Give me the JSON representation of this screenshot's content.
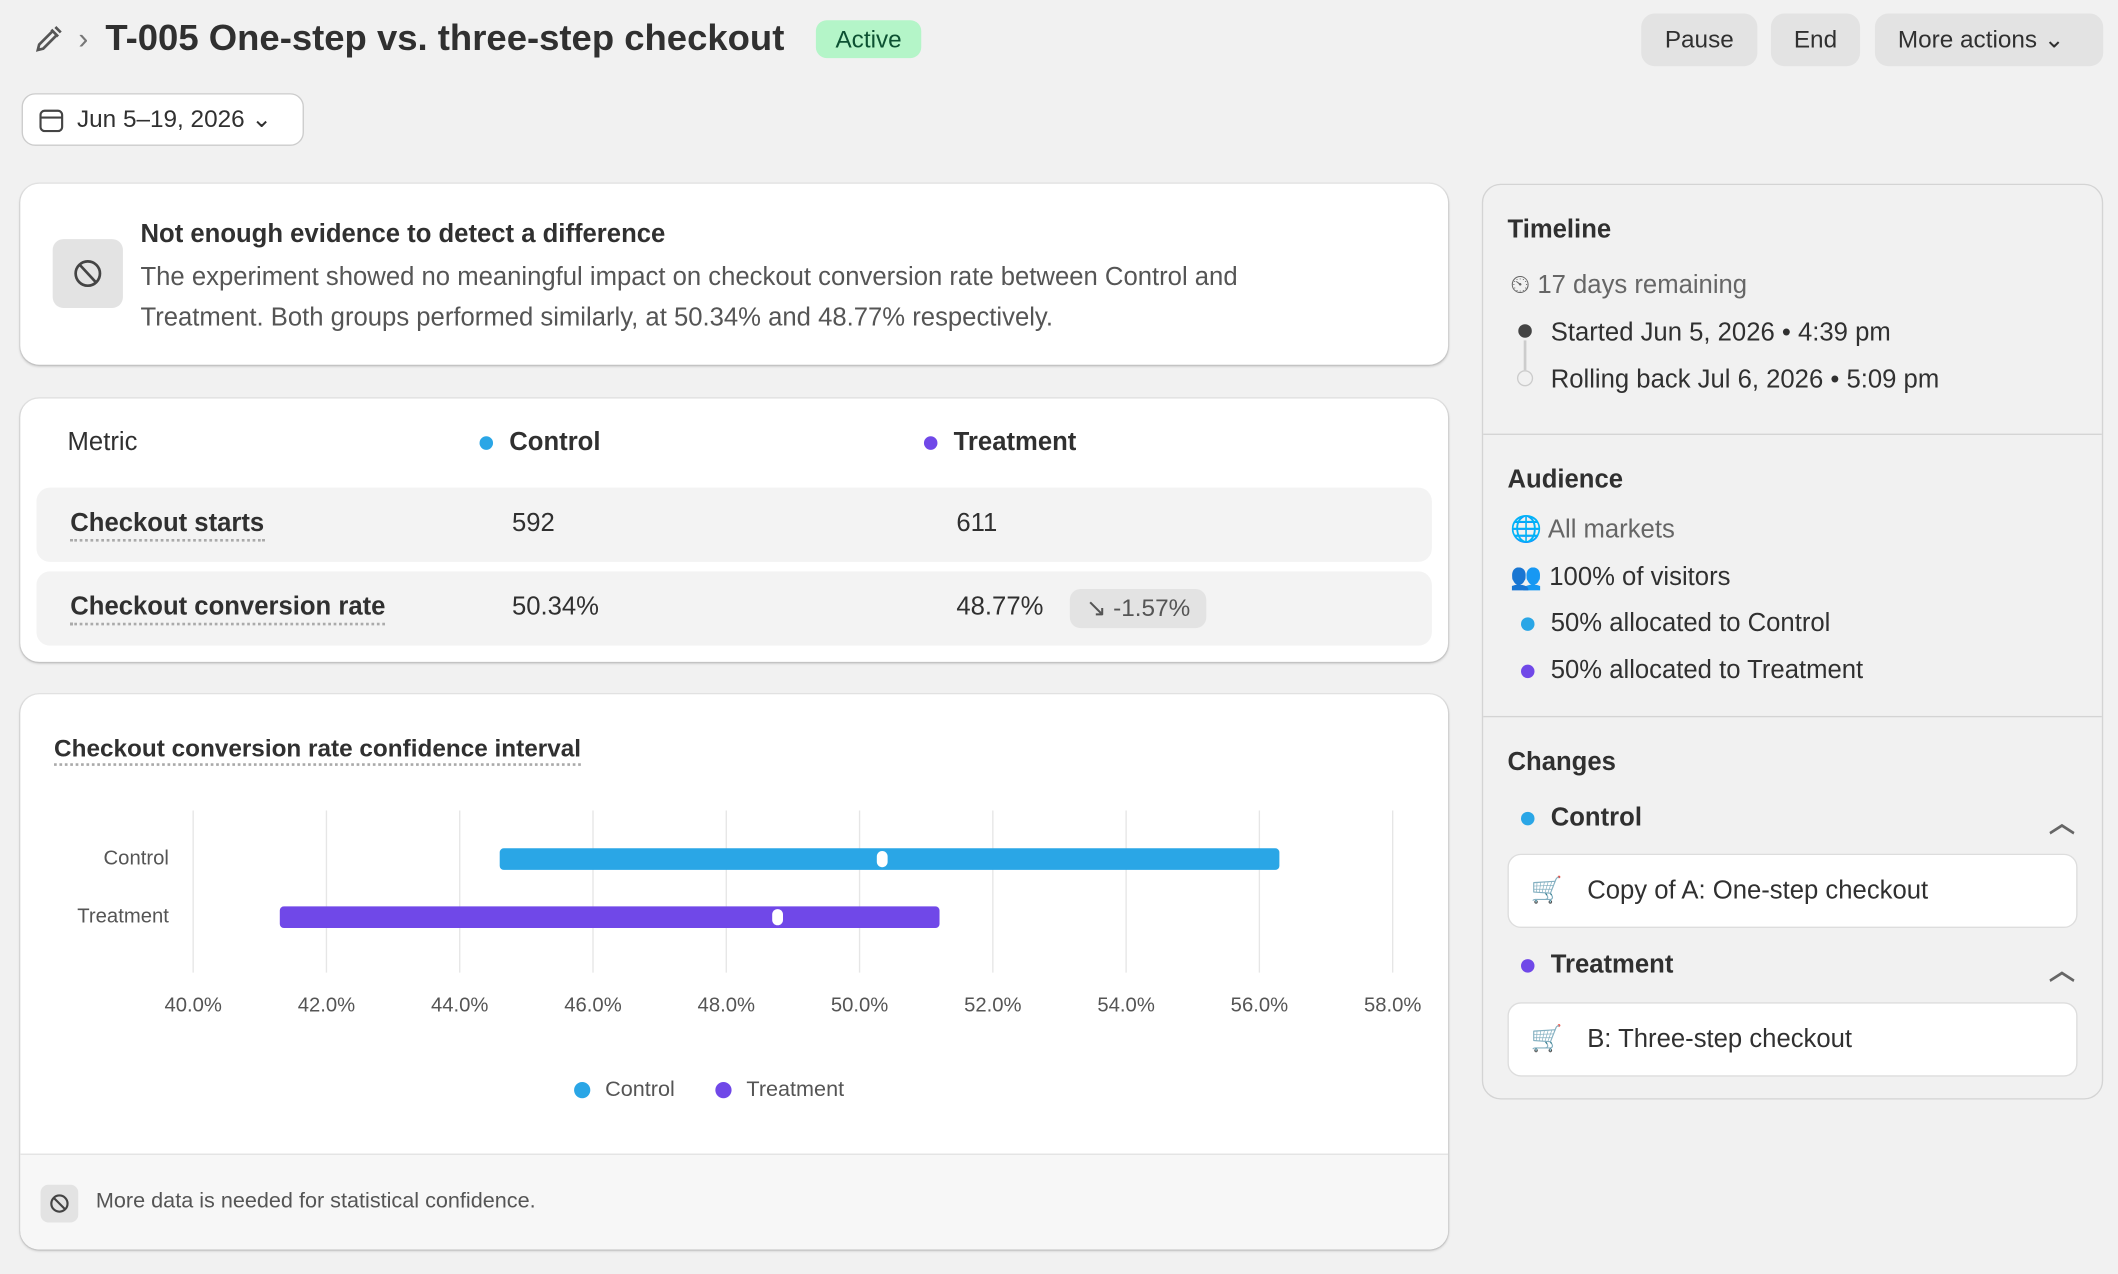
{
  "header": {
    "title": "T-005 One-step vs. three-step checkout",
    "status": "Active",
    "actions": [
      "Pause",
      "End",
      "More actions"
    ],
    "date_range": "Jun 5–19, 2026"
  },
  "summary": {
    "title": "Not enough evidence to detect a difference",
    "text": "The experiment showed no meaningful impact on checkout conversion rate between Control and Treatment. Both groups performed similarly, at 50.34% and 48.77% respectively."
  },
  "metrics": {
    "columns": [
      "Metric",
      "Control",
      "Treatment"
    ],
    "rows": [
      {
        "name": "Checkout starts",
        "control": "592",
        "treatment": "611"
      },
      {
        "name": "Checkout conversion rate",
        "control": "50.34%",
        "treatment": "48.77%",
        "change": "-1.57%"
      }
    ]
  },
  "chart_data": {
    "type": "interval",
    "title": "Checkout conversion rate confidence interval",
    "categories": [
      "Control",
      "Treatment"
    ],
    "series": [
      {
        "name": "Control",
        "color": "#2aa6e6",
        "low": 44.6,
        "estimate": 50.34,
        "high": 56.3
      },
      {
        "name": "Treatment",
        "color": "#7048e8",
        "low": 41.3,
        "estimate": 48.77,
        "high": 51.2
      }
    ],
    "xlim": [
      40,
      58
    ],
    "xticks": [
      {
        "value": 40,
        "label": "40.0%"
      },
      {
        "value": 42,
        "label": "42.0%"
      },
      {
        "value": 44,
        "label": "44.0%"
      },
      {
        "value": 46,
        "label": "46.0%"
      },
      {
        "value": 48,
        "label": "48.0%"
      },
      {
        "value": 50,
        "label": "50.0%"
      },
      {
        "value": 52,
        "label": "52.0%"
      },
      {
        "value": 54,
        "label": "54.0%"
      },
      {
        "value": 56,
        "label": "56.0%"
      },
      {
        "value": 58,
        "label": "58.0%"
      }
    ],
    "grid": true
  },
  "footnote": "More data is needed for statistical confidence.",
  "timeline": {
    "title": "Timeline",
    "remaining": "17 days remaining",
    "events": [
      "Started Jun 5, 2026 • 4:39 pm",
      "Rolling back Jul 6, 2026 • 5:09 pm"
    ]
  },
  "audience": {
    "title": "Audience",
    "items": [
      "All markets",
      "100% of visitors",
      "50% allocated to Control",
      "50% allocated to Treatment"
    ]
  },
  "changes": {
    "title": "Changes",
    "groups": [
      {
        "name": "Control",
        "item": "Copy of A: One-step checkout"
      },
      {
        "name": "Treatment",
        "item": "B: Three-step checkout"
      }
    ]
  }
}
